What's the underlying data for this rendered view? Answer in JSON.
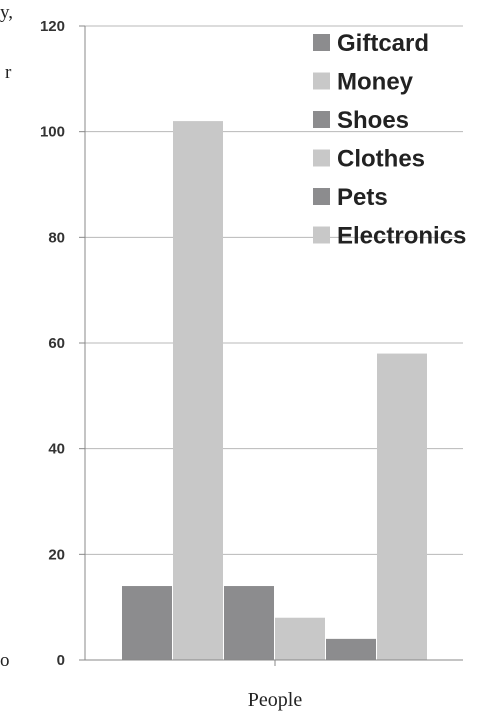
{
  "chart_data": {
    "type": "bar",
    "categories": [
      "People"
    ],
    "series": [
      {
        "name": "Giftcard",
        "values": [
          14
        ],
        "color": "#8c8c8e"
      },
      {
        "name": "Money",
        "values": [
          102
        ],
        "color": "#c8c8c8"
      },
      {
        "name": "Shoes",
        "values": [
          14
        ],
        "color": "#8c8c8e"
      },
      {
        "name": "Clothes",
        "values": [
          8
        ],
        "color": "#c8c8c8"
      },
      {
        "name": "Pets",
        "values": [
          4
        ],
        "color": "#8c8c8e"
      },
      {
        "name": "Electronics",
        "values": [
          58
        ],
        "color": "#c8c8c8"
      }
    ],
    "xlabel": "People",
    "ylim": [
      0,
      120
    ],
    "yticks": [
      0,
      20,
      40,
      60,
      80,
      100,
      120
    ],
    "grid": true,
    "legend_position": "top-right"
  },
  "edge_text": {
    "top_left": "y,",
    "mid_left": "r",
    "bottom_left": "o"
  }
}
